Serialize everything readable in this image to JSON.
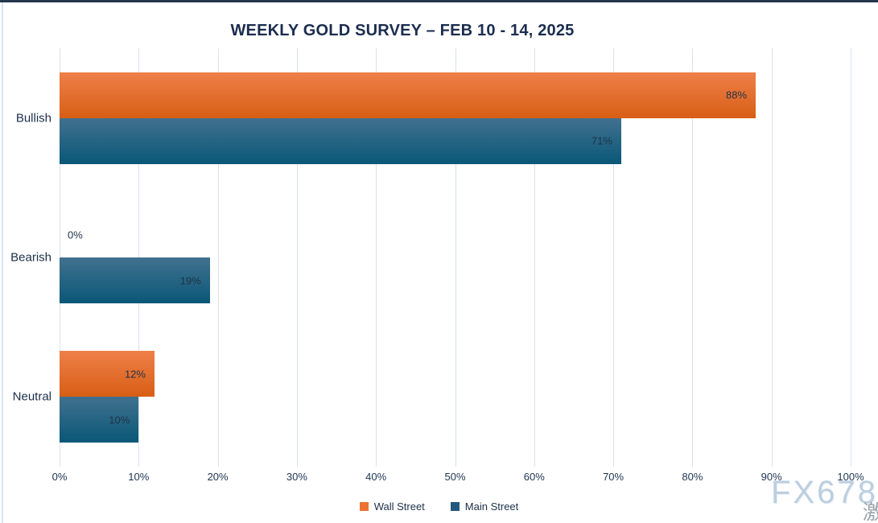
{
  "title": "WEEKLY GOLD SURVEY – FEB 10 - 14, 2025",
  "chart_data": {
    "type": "bar",
    "orientation": "horizontal",
    "title": "WEEKLY GOLD SURVEY – FEB 10 - 14, 2025",
    "categories": [
      "Bullish",
      "Bearish",
      "Neutral"
    ],
    "series": [
      {
        "name": "Wall Street",
        "values": [
          88,
          0,
          12
        ],
        "color_top": "#EE8049",
        "color_bottom": "#D85E15",
        "legend_color": "#EC7331"
      },
      {
        "name": "Main Street",
        "values": [
          71,
          19,
          10
        ],
        "color_top": "#41718F",
        "color_bottom": "#0A5777",
        "legend_color": "#21587B"
      }
    ],
    "value_suffix": "%",
    "x_ticks": [
      "0%",
      "10%",
      "20%",
      "30%",
      "40%",
      "50%",
      "60%",
      "70%",
      "80%",
      "90%",
      "100%"
    ],
    "xlim": [
      0,
      100
    ],
    "grid": true,
    "legend_position": "bottom"
  },
  "watermark": {
    "text": "FX678",
    "cjk": "激"
  },
  "colors": {
    "top_border": "#25364e",
    "left_border": "#d9e5f3",
    "gridline": "#d7e3f2",
    "title_text": "#1b2d4f",
    "label_text": "#1f3246",
    "watermark_text": "#bccfe0"
  }
}
